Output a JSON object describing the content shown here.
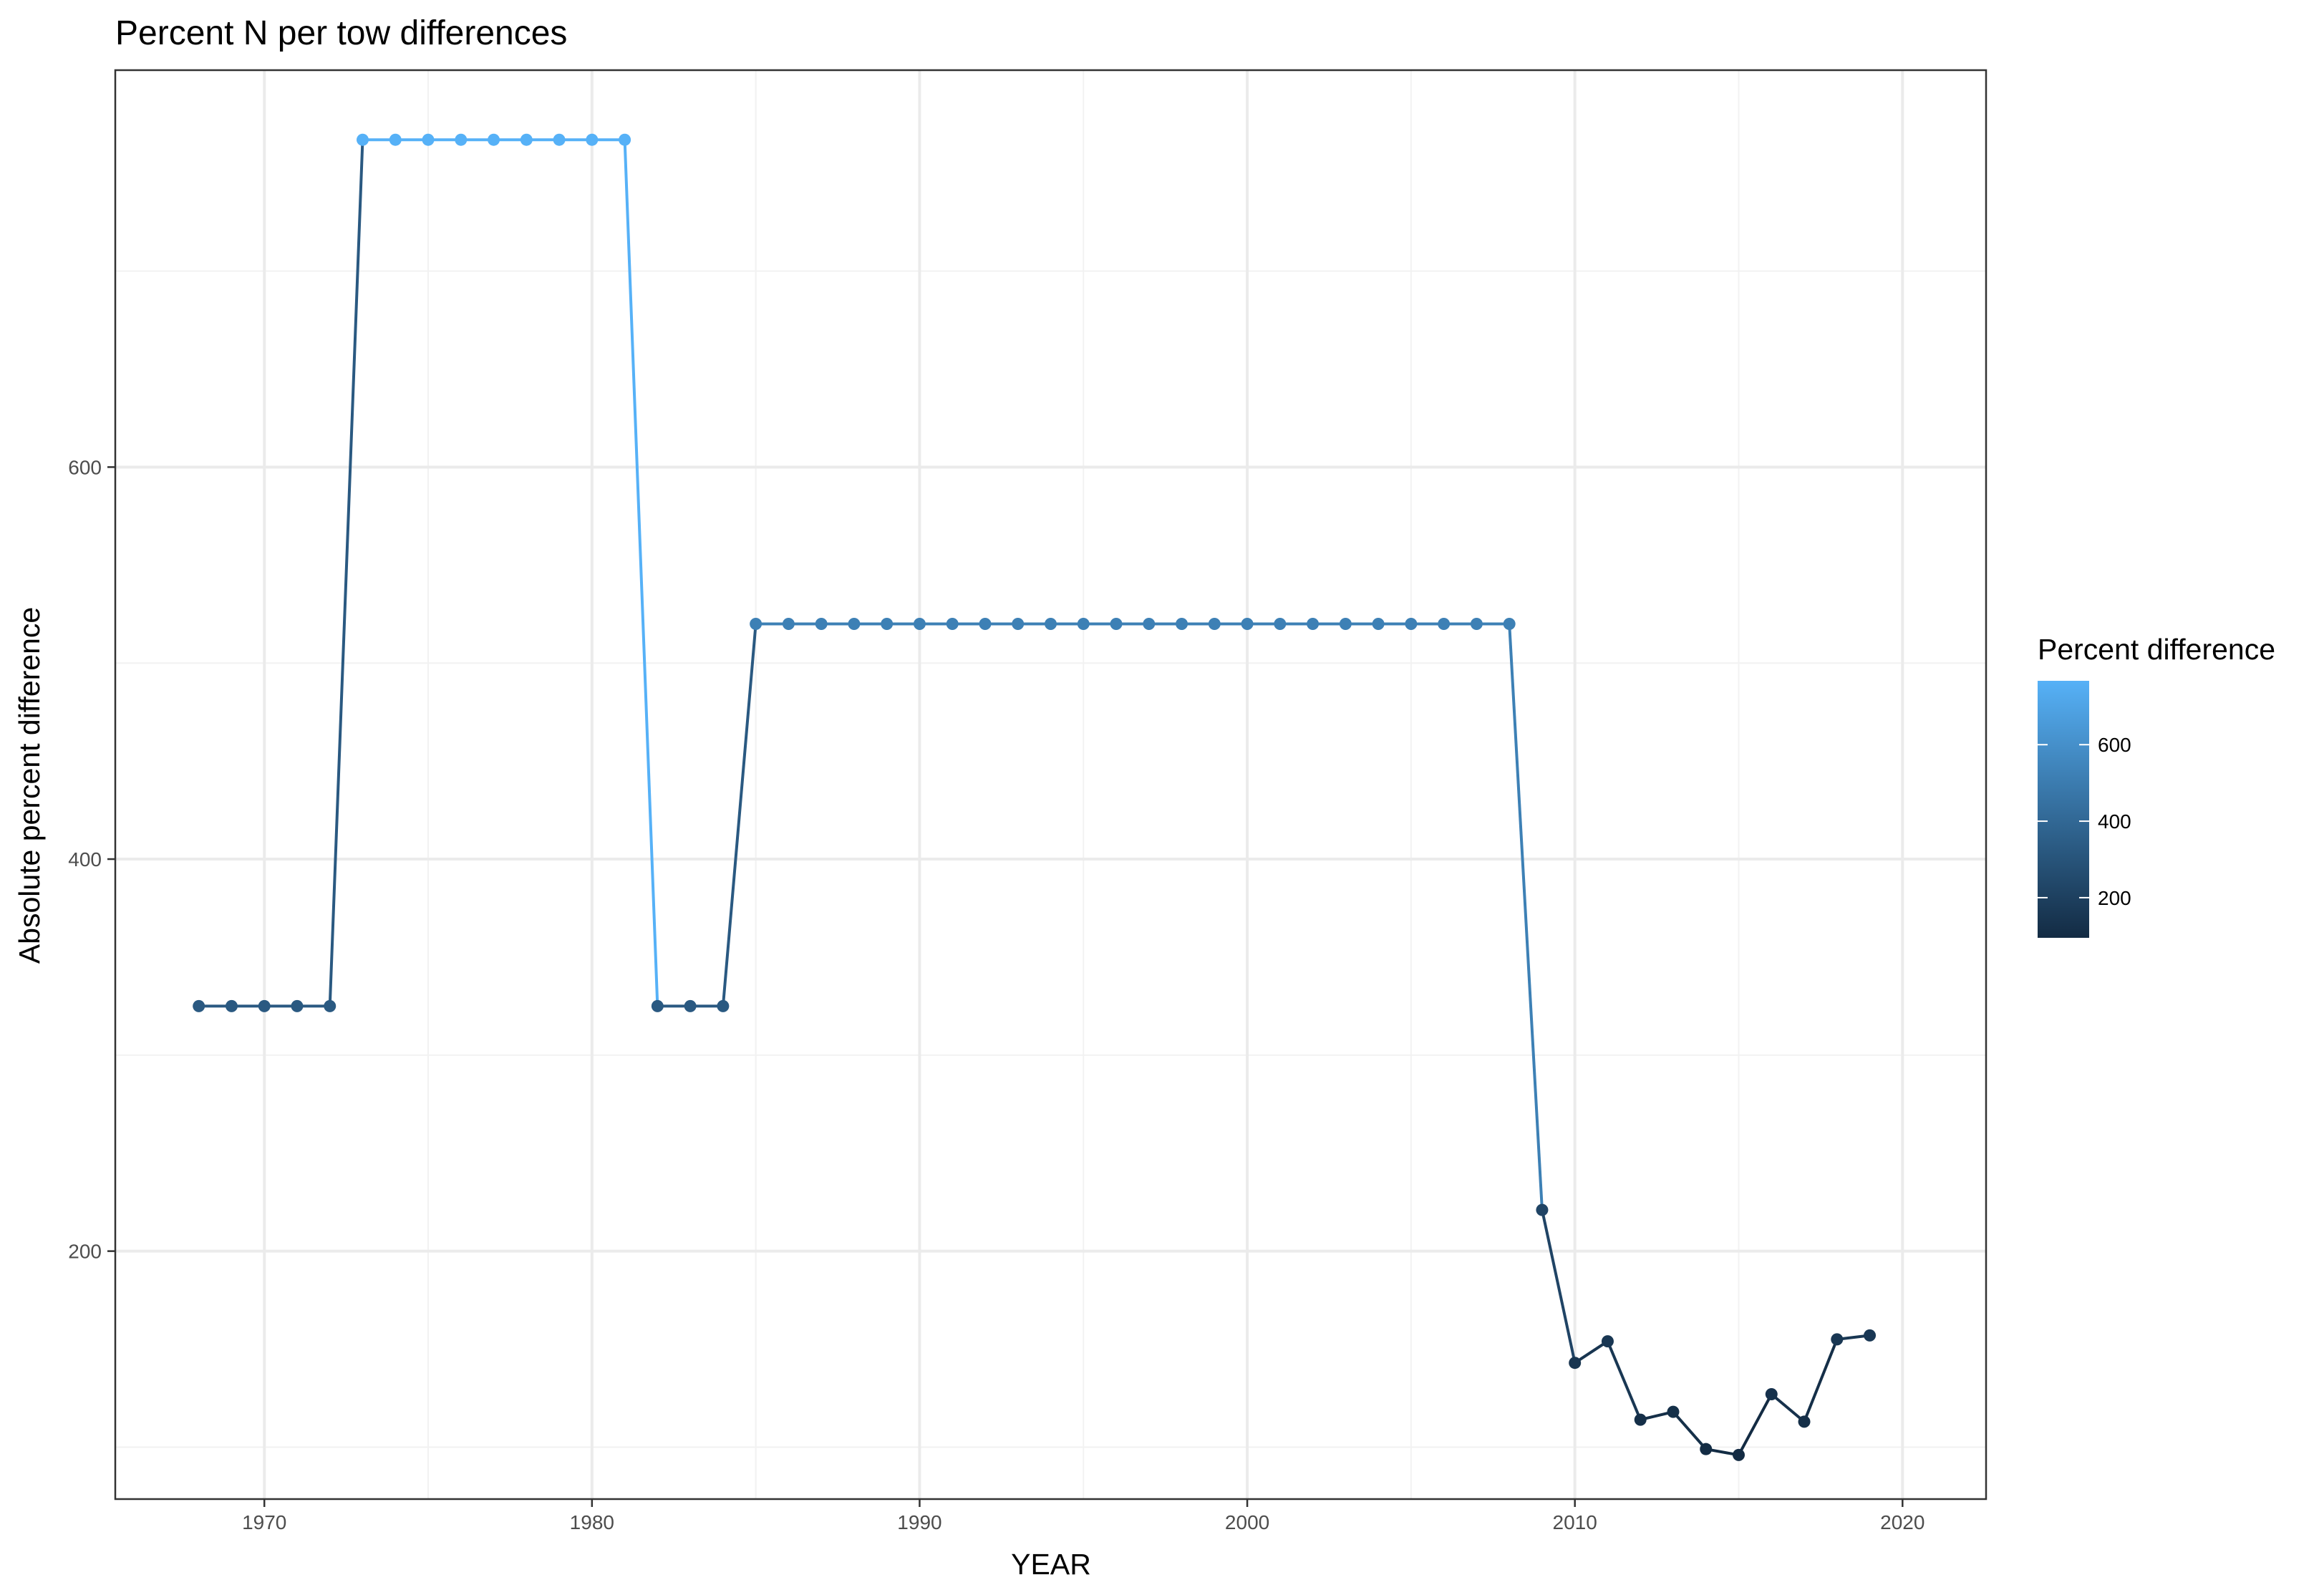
{
  "chart_data": {
    "type": "line",
    "title": "Percent N per tow differences",
    "xlabel": "YEAR",
    "ylabel": "Absolute percent difference",
    "xlim": [
      1965.45,
      2022.55
    ],
    "ylim": [
      73.5,
      802.5
    ],
    "x_major_ticks": [
      1970,
      1980,
      1990,
      2000,
      2010,
      2020
    ],
    "x_minor_ticks": [
      1975,
      1985,
      1995,
      2005,
      2015
    ],
    "y_major_ticks": [
      200,
      400,
      600
    ],
    "y_minor_ticks": [
      100,
      300,
      500,
      700
    ],
    "x_tick_labels": [
      "1970",
      "1980",
      "1990",
      "2000",
      "2010",
      "2020"
    ],
    "y_tick_labels": [
      "200",
      "400",
      "600"
    ],
    "grid": true,
    "color_scale": {
      "title": "Percent difference",
      "low_color": "#132b43",
      "high_color": "#56b1f7",
      "range": [
        95,
        767
      ],
      "breaks": [
        200,
        400,
        600
      ],
      "break_labels": [
        "200",
        "400",
        "600"
      ],
      "placement": "right"
    },
    "series": [
      {
        "x": [
          1968,
          1969,
          1970,
          1971,
          1972,
          1973,
          1974,
          1975,
          1976,
          1977,
          1978,
          1979,
          1980,
          1981,
          1982,
          1983,
          1984,
          1985,
          1986,
          1987,
          1988,
          1989,
          1990,
          1991,
          1992,
          1993,
          1994,
          1995,
          1996,
          1997,
          1998,
          1999,
          2000,
          2001,
          2002,
          2003,
          2004,
          2005,
          2006,
          2007,
          2008,
          2009,
          2010,
          2011,
          2012,
          2013,
          2014,
          2015,
          2016,
          2017,
          2018,
          2019
        ],
        "values": [
          325,
          325,
          325,
          325,
          325,
          767,
          767,
          767,
          767,
          767,
          767,
          767,
          767,
          767,
          325,
          325,
          325,
          520,
          520,
          520,
          520,
          520,
          520,
          520,
          520,
          520,
          520,
          520,
          520,
          520,
          520,
          520,
          520,
          520,
          520,
          520,
          520,
          520,
          520,
          520,
          520,
          221,
          143,
          154,
          114,
          118,
          99,
          96,
          127,
          113,
          155,
          157
        ]
      }
    ]
  }
}
